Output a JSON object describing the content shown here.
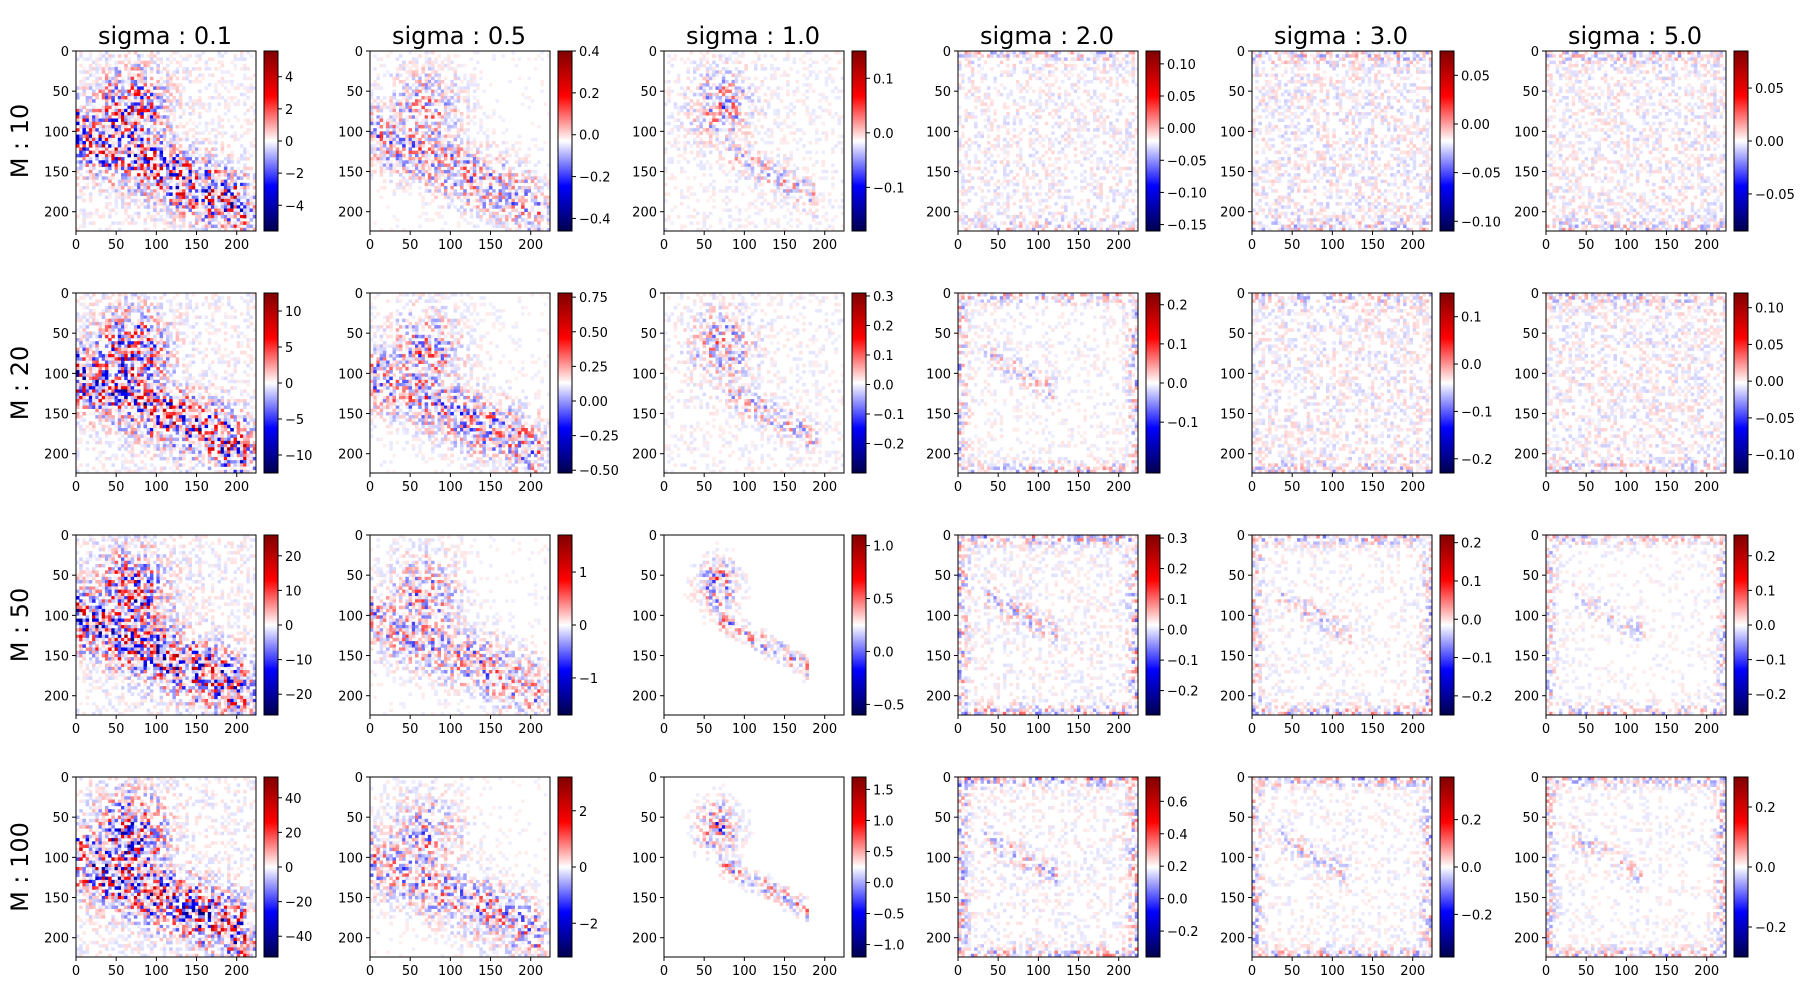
{
  "figure": {
    "column_titles": [
      "sigma : 0.1",
      "sigma : 0.5",
      "sigma : 1.0",
      "sigma : 2.0",
      "sigma : 3.0",
      "sigma : 5.0"
    ],
    "row_titles": [
      "M : 10",
      "M : 20",
      "M : 50",
      "M : 100"
    ]
  },
  "chart_data": {
    "type": "heatmap",
    "colormap": "seismic",
    "grid": false,
    "image_axes": {
      "x_ticks": [
        0,
        50,
        100,
        150,
        200
      ],
      "y_ticks": [
        0,
        50,
        100,
        150,
        200
      ],
      "x_range": [
        0,
        224
      ],
      "y_range": [
        224,
        0
      ]
    },
    "panels": [
      [
        {
          "vmin": -5.6,
          "vmax": 5.6,
          "cbar_ticks": [
            -4,
            -2,
            0,
            2,
            4
          ],
          "pattern": "diag",
          "intensity": 0.85
        },
        {
          "vmin": -0.46,
          "vmax": 0.4,
          "cbar_ticks": [
            -0.4,
            -0.2,
            0.0,
            0.2,
            0.4
          ],
          "pattern": "diag",
          "intensity": 0.45
        },
        {
          "vmin": -0.18,
          "vmax": 0.15,
          "cbar_ticks": [
            -0.1,
            0.0,
            0.1
          ],
          "pattern": "cluster",
          "intensity": 0.45
        },
        {
          "vmin": -0.16,
          "vmax": 0.12,
          "cbar_ticks": [
            -0.15,
            -0.1,
            -0.05,
            0.0,
            0.05,
            0.1
          ],
          "pattern": "noise",
          "intensity": 0.25
        },
        {
          "vmin": -0.11,
          "vmax": 0.075,
          "cbar_ticks": [
            -0.1,
            -0.05,
            0.0,
            0.05
          ],
          "pattern": "noise",
          "intensity": 0.3
        },
        {
          "vmin": -0.085,
          "vmax": 0.085,
          "cbar_ticks": [
            -0.05,
            0.0,
            0.05
          ],
          "pattern": "noise",
          "intensity": 0.28
        }
      ],
      [
        {
          "vmin": -12.5,
          "vmax": 12.5,
          "cbar_ticks": [
            -10,
            -5,
            0,
            5,
            10
          ],
          "pattern": "diag",
          "intensity": 0.9
        },
        {
          "vmin": -0.52,
          "vmax": 0.78,
          "cbar_ticks": [
            -0.5,
            -0.25,
            0.0,
            0.25,
            0.5,
            0.75
          ],
          "pattern": "diag",
          "intensity": 0.5
        },
        {
          "vmin": -0.3,
          "vmax": 0.31,
          "cbar_ticks": [
            -0.2,
            -0.1,
            0.0,
            0.1,
            0.2,
            0.3
          ],
          "pattern": "cluster",
          "intensity": 0.45
        },
        {
          "vmin": -0.23,
          "vmax": 0.23,
          "cbar_ticks": [
            -0.1,
            0.0,
            0.1,
            0.2
          ],
          "pattern": "edges",
          "intensity": 0.3
        },
        {
          "vmin": -0.23,
          "vmax": 0.15,
          "cbar_ticks": [
            -0.2,
            -0.1,
            0.0,
            0.1
          ],
          "pattern": "noise",
          "intensity": 0.28
        },
        {
          "vmin": -0.125,
          "vmax": 0.12,
          "cbar_ticks": [
            -0.1,
            -0.05,
            0.0,
            0.05,
            0.1
          ],
          "pattern": "noise",
          "intensity": 0.28
        }
      ],
      [
        {
          "vmin": -26,
          "vmax": 26,
          "cbar_ticks": [
            -20,
            -10,
            0,
            10,
            20
          ],
          "pattern": "diag",
          "intensity": 0.9
        },
        {
          "vmin": -1.7,
          "vmax": 1.7,
          "cbar_ticks": [
            -1,
            0,
            1
          ],
          "pattern": "diag",
          "intensity": 0.45
        },
        {
          "vmin": -0.6,
          "vmax": 1.1,
          "cbar_ticks": [
            -0.5,
            0.0,
            0.5,
            1.0
          ],
          "pattern": "sparse",
          "intensity": 0.55
        },
        {
          "vmin": -0.28,
          "vmax": 0.31,
          "cbar_ticks": [
            -0.2,
            -0.1,
            0.0,
            0.1,
            0.2,
            0.3
          ],
          "pattern": "edges",
          "intensity": 0.35
        },
        {
          "vmin": -0.25,
          "vmax": 0.22,
          "cbar_ticks": [
            -0.2,
            -0.1,
            0.0,
            0.1,
            0.2
          ],
          "pattern": "edges",
          "intensity": 0.3
        },
        {
          "vmin": -0.26,
          "vmax": 0.26,
          "cbar_ticks": [
            -0.2,
            -0.1,
            0.0,
            0.1,
            0.2
          ],
          "pattern": "edges",
          "intensity": 0.25
        }
      ],
      [
        {
          "vmin": -52,
          "vmax": 52,
          "cbar_ticks": [
            -40,
            -20,
            0,
            20,
            40
          ],
          "pattern": "diag",
          "intensity": 0.9
        },
        {
          "vmin": -3.2,
          "vmax": 3.2,
          "cbar_ticks": [
            -2,
            0,
            2
          ],
          "pattern": "diag",
          "intensity": 0.45
        },
        {
          "vmin": -1.2,
          "vmax": 1.7,
          "cbar_ticks": [
            -1.0,
            -0.5,
            0.0,
            0.5,
            1.0,
            1.5
          ],
          "pattern": "sparse",
          "intensity": 0.55
        },
        {
          "vmin": -0.36,
          "vmax": 0.75,
          "cbar_ticks": [
            -0.2,
            0.0,
            0.2,
            0.4,
            0.6
          ],
          "pattern": "edges",
          "intensity": 0.35
        },
        {
          "vmin": -0.38,
          "vmax": 0.38,
          "cbar_ticks": [
            -0.2,
            0.0,
            0.2
          ],
          "pattern": "edges",
          "intensity": 0.3
        },
        {
          "vmin": -0.3,
          "vmax": 0.3,
          "cbar_ticks": [
            -0.2,
            0.0,
            0.2
          ],
          "pattern": "edges",
          "intensity": 0.28
        }
      ]
    ]
  }
}
